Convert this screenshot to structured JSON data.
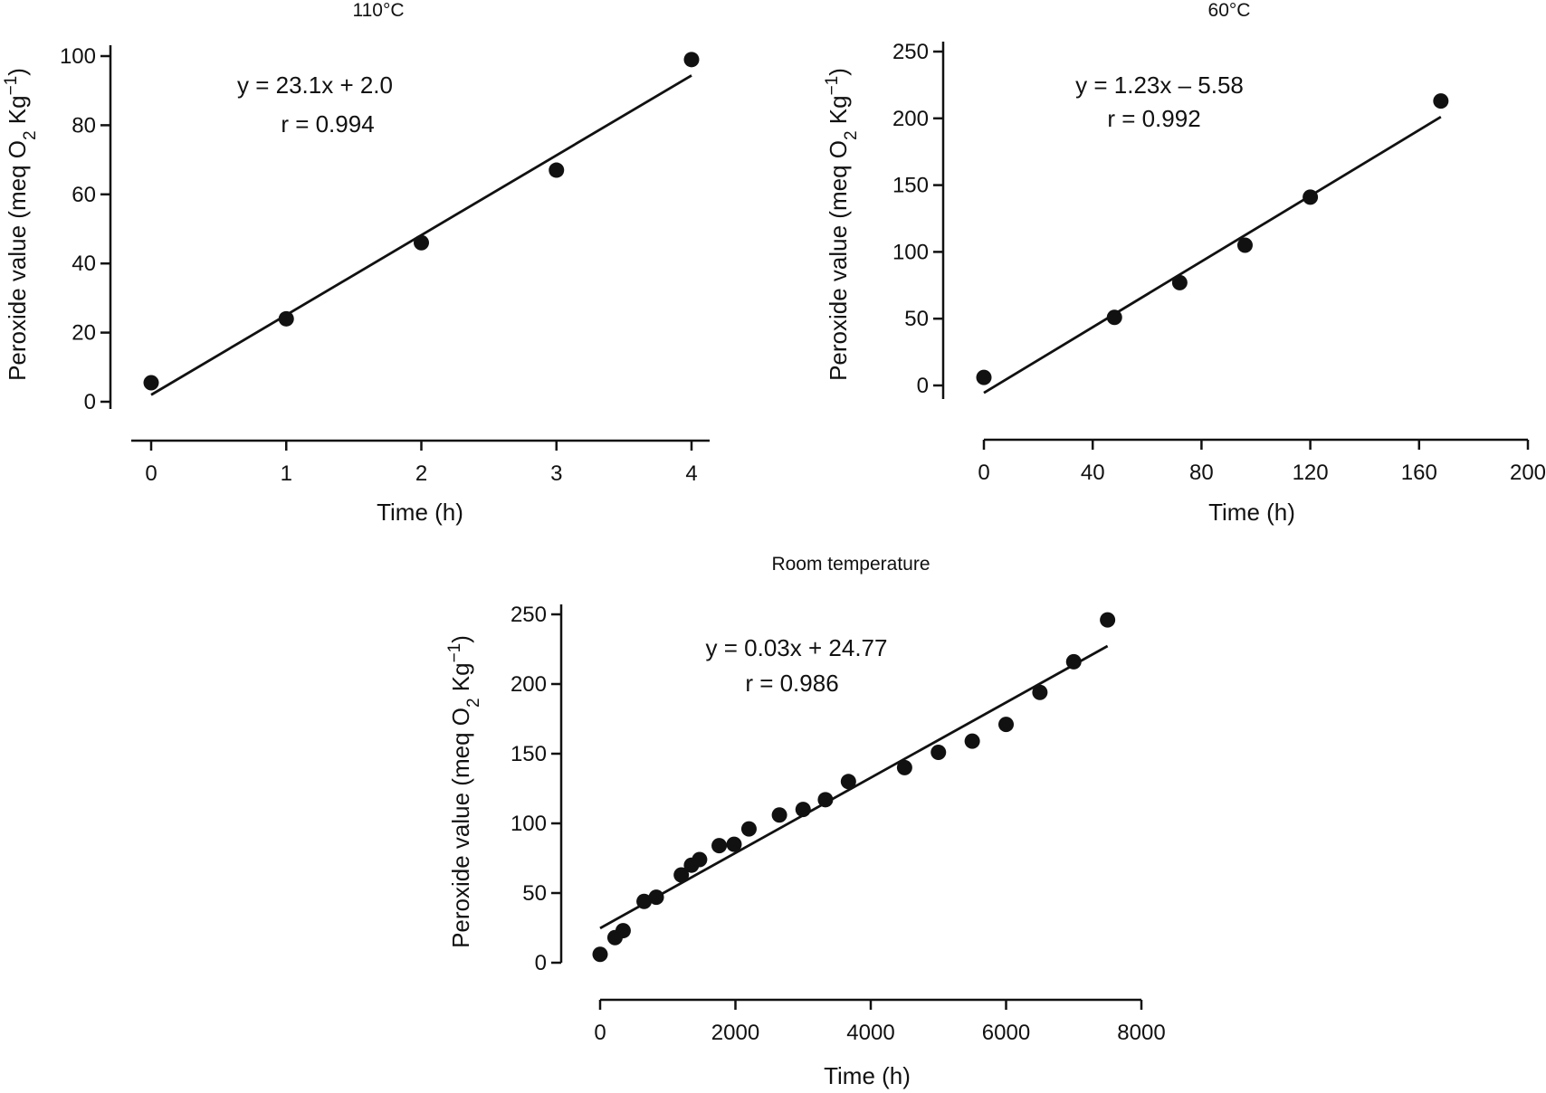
{
  "chart_data": [
    {
      "type": "scatter",
      "title": "110°C",
      "xlabel": "Time (h)",
      "ylabel": "Peroxide value (meq O2 Kg-1)",
      "ylabel_parts": {
        "main": "Peroxide value (meq  O",
        "sub": "2",
        "mid": " Kg",
        "sup": "−1",
        "end": ")"
      },
      "xlim": [
        0,
        4
      ],
      "ylim": [
        0,
        100
      ],
      "xticks": [
        0,
        1,
        2,
        3,
        4
      ],
      "yticks": [
        0,
        20,
        40,
        60,
        80,
        100
      ],
      "grid": false,
      "points": [
        {
          "x": 0,
          "y": 5.5
        },
        {
          "x": 1,
          "y": 24
        },
        {
          "x": 2,
          "y": 46
        },
        {
          "x": 3,
          "y": 67
        },
        {
          "x": 4,
          "y": 99
        }
      ],
      "fit": {
        "slope": 23.1,
        "intercept": 2.0,
        "x_range": [
          0,
          4
        ]
      },
      "annotations": [
        "y = 23.1x + 2.0",
        "r = 0.994"
      ]
    },
    {
      "type": "scatter",
      "title": "60°C",
      "xlabel": "Time (h)",
      "ylabel": "Peroxide value (meq O2 Kg-1)",
      "ylabel_parts": {
        "main": "Peroxide value (meq  O",
        "sub": "2",
        "mid": " Kg",
        "sup": "−1",
        "end": ")"
      },
      "xlim": [
        0,
        200
      ],
      "ylim": [
        0,
        250
      ],
      "xticks": [
        0,
        40,
        80,
        120,
        160,
        200
      ],
      "yticks": [
        0,
        50,
        100,
        150,
        200,
        250
      ],
      "grid": false,
      "points": [
        {
          "x": 0,
          "y": 6
        },
        {
          "x": 48,
          "y": 51
        },
        {
          "x": 72,
          "y": 77
        },
        {
          "x": 96,
          "y": 105
        },
        {
          "x": 120,
          "y": 141
        },
        {
          "x": 168,
          "y": 213
        }
      ],
      "fit": {
        "slope": 1.23,
        "intercept": -5.58,
        "x_range": [
          0,
          168
        ]
      },
      "annotations": [
        "y = 1.23x – 5.58",
        "r = 0.992"
      ]
    },
    {
      "type": "scatter",
      "title": "Room temperature",
      "xlabel": "Time (h)",
      "ylabel": "Peroxide value (meq O2 Kg-1)",
      "ylabel_parts": {
        "main": "Peroxide value (meq  O",
        "sub": "2",
        "mid": " Kg",
        "sup": "−1",
        "end": ")"
      },
      "xlim": [
        0,
        8000
      ],
      "ylim": [
        0,
        250
      ],
      "xticks": [
        0,
        2000,
        4000,
        6000,
        8000
      ],
      "yticks": [
        0,
        50,
        100,
        150,
        200,
        250
      ],
      "grid": false,
      "points": [
        {
          "x": 0,
          "y": 6
        },
        {
          "x": 220,
          "y": 18
        },
        {
          "x": 340,
          "y": 23
        },
        {
          "x": 650,
          "y": 44
        },
        {
          "x": 830,
          "y": 47
        },
        {
          "x": 1200,
          "y": 63
        },
        {
          "x": 1350,
          "y": 70
        },
        {
          "x": 1470,
          "y": 74
        },
        {
          "x": 1760,
          "y": 84
        },
        {
          "x": 1980,
          "y": 85
        },
        {
          "x": 2200,
          "y": 96
        },
        {
          "x": 2650,
          "y": 106
        },
        {
          "x": 3000,
          "y": 110
        },
        {
          "x": 3330,
          "y": 117
        },
        {
          "x": 3670,
          "y": 130
        },
        {
          "x": 4500,
          "y": 140
        },
        {
          "x": 5000,
          "y": 151
        },
        {
          "x": 5500,
          "y": 159
        },
        {
          "x": 6000,
          "y": 171
        },
        {
          "x": 6500,
          "y": 194
        },
        {
          "x": 7000,
          "y": 216
        },
        {
          "x": 7500,
          "y": 246
        }
      ],
      "fit": {
        "slope": 0.027,
        "intercept": 24.77,
        "x_range": [
          0,
          7500
        ]
      },
      "annotations": [
        "y = 0.03x + 24.77",
        "r = 0.986"
      ]
    }
  ]
}
